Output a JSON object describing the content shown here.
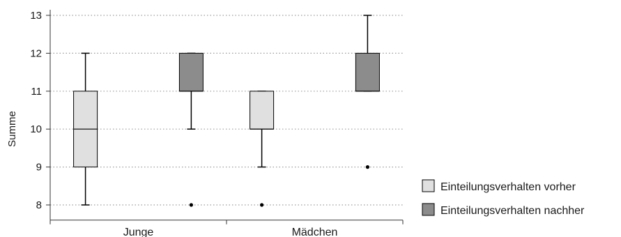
{
  "chart_data": {
    "type": "boxplot",
    "title": "",
    "xlabel": "",
    "ylabel": "Summe",
    "ylim": [
      7.6,
      13.2
    ],
    "yticks": [
      8,
      9,
      10,
      11,
      12,
      13
    ],
    "grid": "horizontal dotted",
    "legend_position": "bottom-right",
    "categories": [
      "Junge",
      "Mädchen"
    ],
    "series": [
      {
        "name": "Einteilungsverhalten vorher",
        "color": "#e0e0e0",
        "boxes": [
          {
            "category": "Junge",
            "whisker_low": 8,
            "q1": 9,
            "median": 10,
            "q3": 11,
            "whisker_high": 12,
            "outliers": []
          },
          {
            "category": "Mädchen",
            "whisker_low": 9,
            "q1": 10,
            "median": 10,
            "q3": 11,
            "whisker_high": 11,
            "outliers": [
              8
            ]
          }
        ]
      },
      {
        "name": "Einteilungsverhalten nachher",
        "color": "#8c8c8c",
        "boxes": [
          {
            "category": "Junge",
            "whisker_low": 10,
            "q1": 11,
            "median": 11,
            "q3": 12,
            "whisker_high": 12,
            "outliers": [
              8
            ]
          },
          {
            "category": "Mädchen",
            "whisker_low": 11,
            "q1": 11,
            "median": 11,
            "q3": 12,
            "whisker_high": 13,
            "outliers": [
              9
            ]
          }
        ]
      }
    ]
  }
}
